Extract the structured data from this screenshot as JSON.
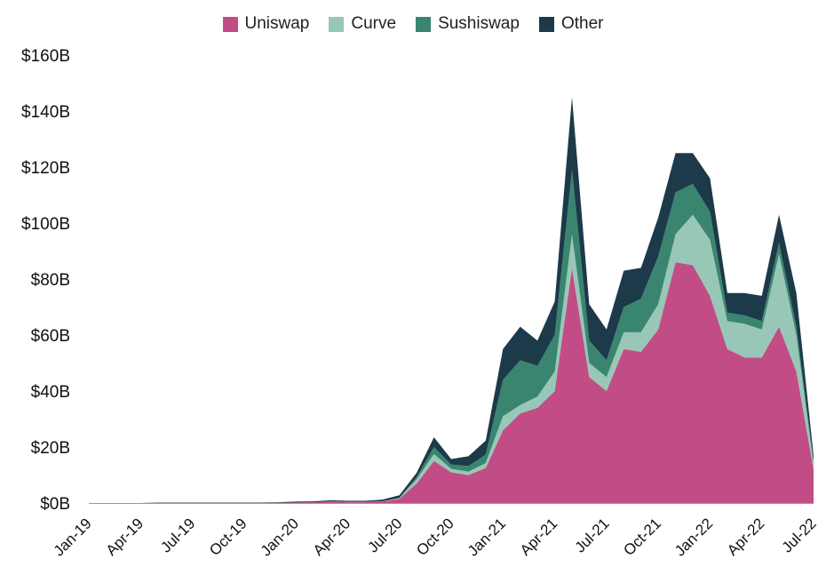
{
  "chart_data": {
    "type": "area",
    "stacked": true,
    "title": "",
    "xlabel": "",
    "ylabel": "",
    "ylim": [
      0,
      160
    ],
    "y_ticks": [
      "$0B",
      "$20B",
      "$40B",
      "$60B",
      "$80B",
      "$100B",
      "$120B",
      "$140B",
      "$160B"
    ],
    "y_tick_values": [
      0,
      20,
      40,
      60,
      80,
      100,
      120,
      140,
      160
    ],
    "x_tick_labels": [
      "Jan-19",
      "Apr-19",
      "Jul-19",
      "Oct-19",
      "Jan-20",
      "Apr-20",
      "Jul-20",
      "Oct-20",
      "Jan-21",
      "Apr-21",
      "Jul-21",
      "Oct-21",
      "Jan-22",
      "Apr-22",
      "Jul-22"
    ],
    "x_tick_indices": [
      0,
      3,
      6,
      9,
      12,
      15,
      18,
      21,
      24,
      27,
      30,
      33,
      36,
      39,
      42
    ],
    "legend_position": "top-center",
    "categories": [
      "Jan-19",
      "Feb-19",
      "Mar-19",
      "Apr-19",
      "May-19",
      "Jun-19",
      "Jul-19",
      "Aug-19",
      "Sep-19",
      "Oct-19",
      "Nov-19",
      "Dec-19",
      "Jan-20",
      "Feb-20",
      "Mar-20",
      "Apr-20",
      "May-20",
      "Jun-20",
      "Jul-20",
      "Aug-20",
      "Sep-20",
      "Oct-20",
      "Nov-20",
      "Dec-20",
      "Jan-21",
      "Feb-21",
      "Mar-21",
      "Apr-21",
      "May-21",
      "Jun-21",
      "Jul-21",
      "Aug-21",
      "Sep-21",
      "Oct-21",
      "Nov-21",
      "Dec-21",
      "Jan-22",
      "Feb-22",
      "Mar-22",
      "Apr-22",
      "May-22",
      "Jun-22",
      "Jul-22"
    ],
    "series": [
      {
        "name": "Uniswap",
        "color": "#c24d86",
        "values": [
          0,
          0,
          0,
          0,
          0.1,
          0.1,
          0.1,
          0.1,
          0.1,
          0.1,
          0.1,
          0.1,
          0.2,
          0.3,
          0.4,
          0.3,
          0.3,
          0.5,
          1.5,
          7,
          15,
          11,
          10,
          12.5,
          26,
          32,
          34,
          40,
          84,
          45,
          40,
          55,
          54,
          62,
          86,
          85,
          74,
          55,
          52,
          52,
          63,
          47,
          12
        ]
      },
      {
        "name": "Curve",
        "color": "#98c7b7",
        "values": [
          0,
          0,
          0,
          0,
          0,
          0,
          0,
          0,
          0,
          0,
          0,
          0,
          0,
          0,
          0.1,
          0.1,
          0.1,
          0.1,
          0.3,
          1.5,
          2.5,
          1.2,
          1.2,
          1.8,
          5,
          3,
          4,
          7,
          12,
          5,
          5,
          6,
          7,
          9,
          10,
          18,
          20,
          10,
          12,
          10,
          26,
          13,
          2
        ]
      },
      {
        "name": "Sushiswap",
        "color": "#3a8570",
        "values": [
          0,
          0,
          0,
          0,
          0,
          0,
          0,
          0,
          0,
          0,
          0,
          0,
          0,
          0,
          0,
          0,
          0,
          0,
          0,
          0.8,
          2.5,
          1.5,
          2,
          3,
          13,
          16,
          11,
          13,
          23,
          8,
          6,
          9,
          12,
          17,
          15,
          11,
          10,
          3,
          3,
          3,
          4,
          3,
          1
        ]
      },
      {
        "name": "Other",
        "color": "#1c3a49",
        "values": [
          0,
          0,
          0,
          0,
          0.1,
          0.1,
          0.1,
          0.1,
          0.1,
          0.1,
          0.1,
          0.2,
          0.3,
          0.3,
          0.5,
          0.4,
          0.4,
          0.6,
          1,
          1.5,
          3.5,
          2,
          3.5,
          5,
          11,
          12,
          9,
          12,
          26,
          13,
          11,
          13,
          11,
          14,
          14,
          11,
          12,
          7,
          8,
          9,
          10,
          12,
          2
        ]
      }
    ]
  }
}
